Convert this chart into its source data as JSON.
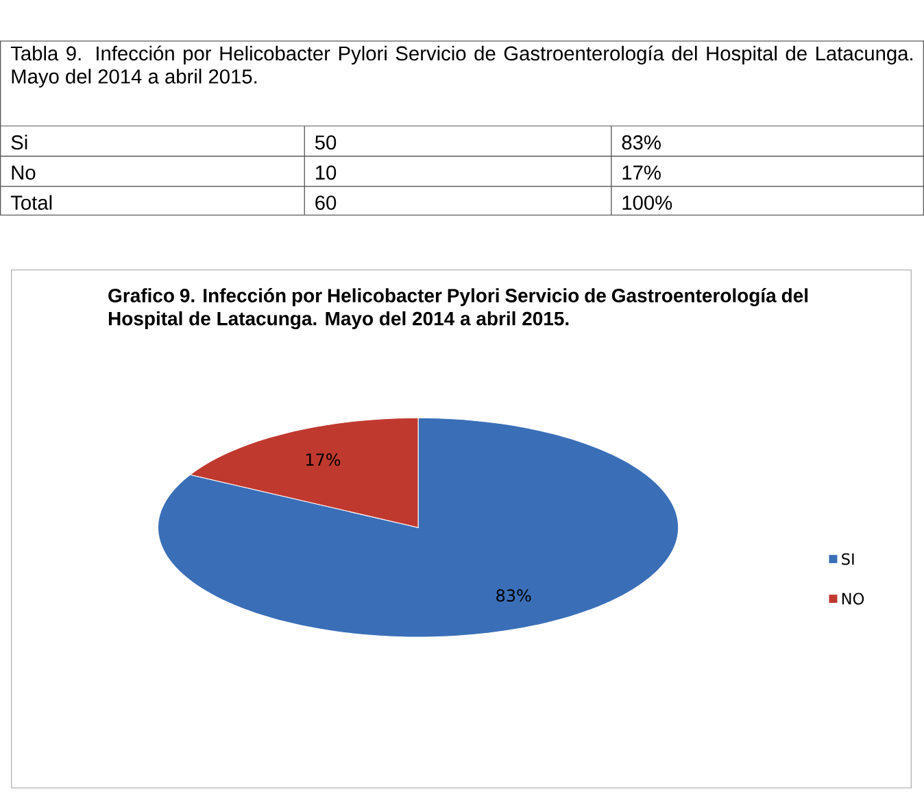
{
  "chart_data": {
    "type": "pie",
    "title": "Grafico 9. Infección por Helicobacter Pylori Servicio de Gastroenterología del Hospital de Latacunga. Mayo del 2014 a abril 2015.",
    "categories": [
      "SI",
      "NO"
    ],
    "values": [
      83,
      17
    ],
    "colors": [
      "#3a6fb8",
      "#c0392f"
    ],
    "value_labels": [
      "83%",
      "17%"
    ],
    "legend": "right",
    "annotations": [
      "Tabla 9. Infección por Helicobacter Pylori Servicio de Gastroenterología del Hospital de Latacunga. Mayo del 2014 a abril 2015.",
      "Si",
      "50",
      "83%",
      "No",
      "10",
      "17%",
      "Total",
      "60",
      "100%"
    ]
  }
}
